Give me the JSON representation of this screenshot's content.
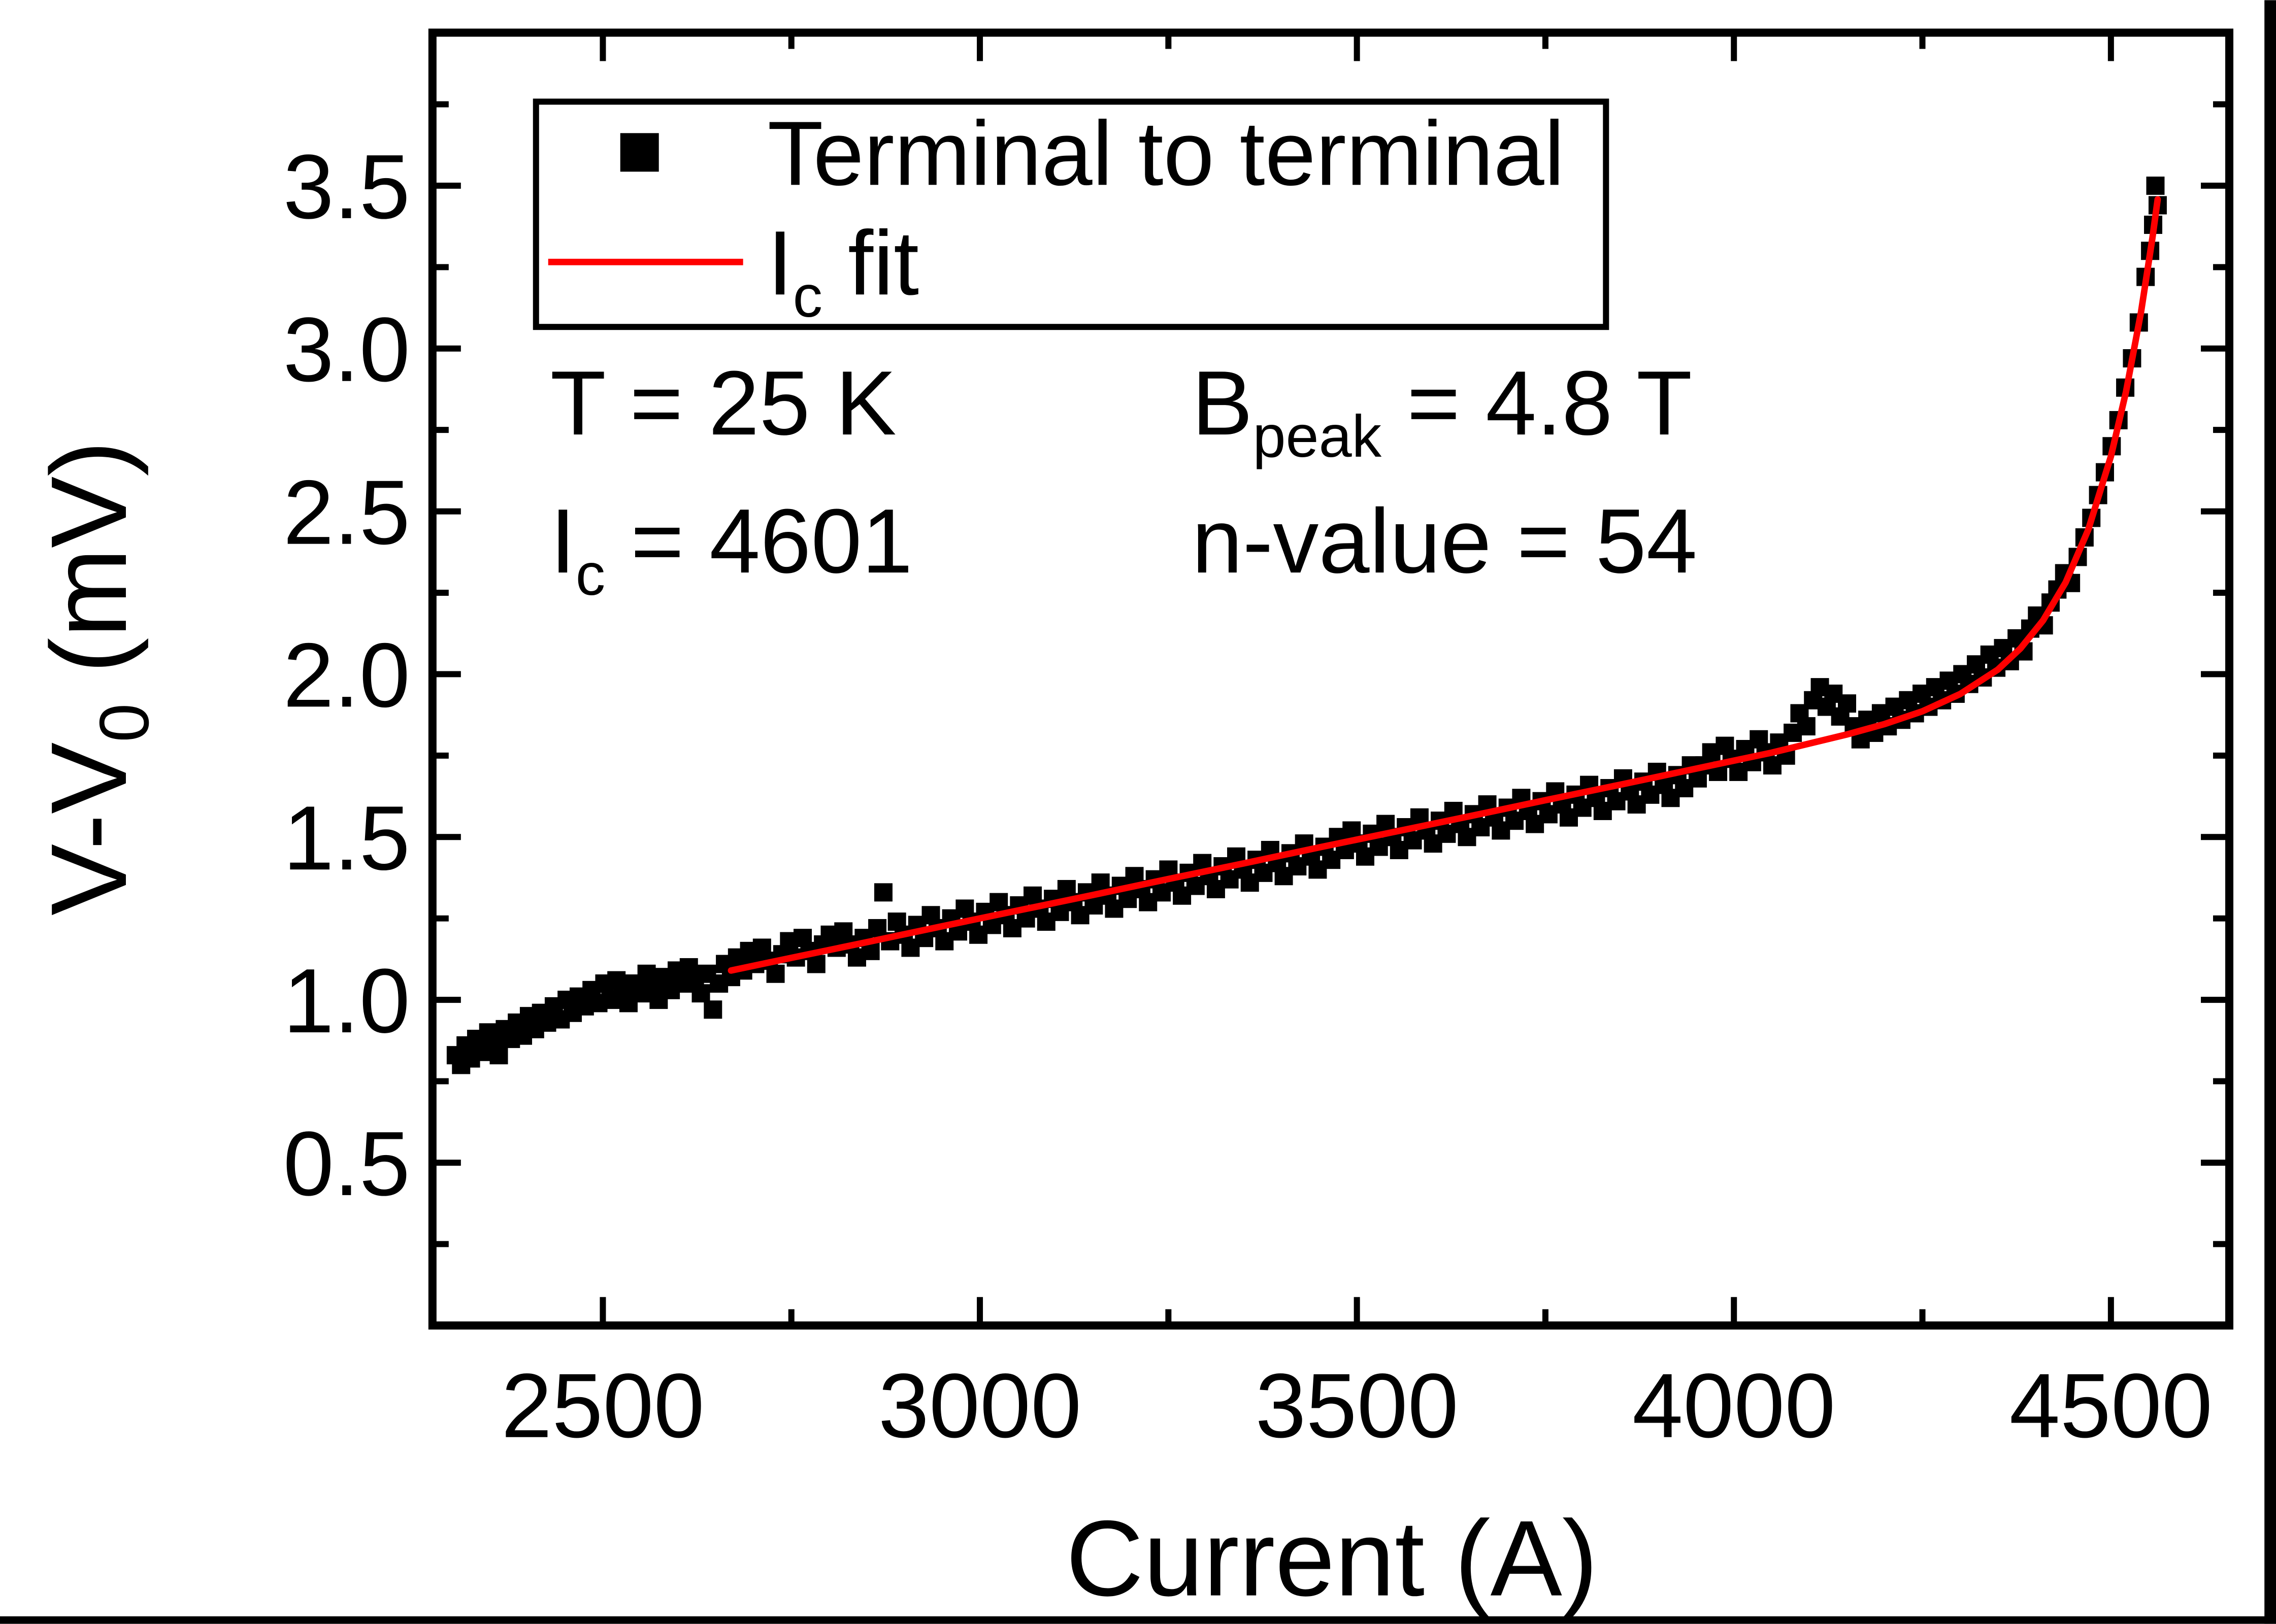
{
  "colors": {
    "background": "#ffffff",
    "data_marker": "#000000",
    "fit_line": "#ff0000",
    "axis": "#000000",
    "page_edge_bars": "#000000"
  },
  "legend": {
    "entries": [
      {
        "label": "Terminal to terminal",
        "marker": "filled-square",
        "color": "#000000"
      },
      {
        "label_parts": {
          "pre": "I",
          "sub": "c",
          "post": " fit"
        },
        "marker": "line",
        "color": "#ff0000"
      }
    ]
  },
  "annotations": {
    "temperature": {
      "pre": "T = 25 K"
    },
    "peak_field": {
      "pre": "B",
      "sub": "peak",
      "post": " = 4.8 T"
    },
    "critical_current": {
      "pre": "I",
      "sub": "c",
      "post": " = 4601"
    },
    "n_value": {
      "pre": "n-value = 54"
    }
  },
  "chart_data": {
    "type": "scatter",
    "title": "",
    "xlabel": "Current (A)",
    "ylabel_parts": {
      "pre": "V-V",
      "sub": "0",
      "post": " (mV)"
    },
    "xlim": [
      2274,
      4657
    ],
    "ylim": [
      0,
      3.97
    ],
    "grid": false,
    "legend_position": "top-left-inside",
    "x_major_ticks": [
      2500,
      3000,
      3500,
      4000,
      4500
    ],
    "x_minor_ticks": [
      2750,
      3250,
      3750,
      4250
    ],
    "y_major_ticks": [
      0.5,
      1.0,
      1.5,
      2.0,
      2.5,
      3.0,
      3.5
    ],
    "y_minor_ticks": [
      0.25,
      0.75,
      1.25,
      1.75,
      2.25,
      2.75,
      3.25,
      3.75
    ],
    "series": [
      {
        "name": "Terminal to terminal",
        "type": "scatter",
        "marker": "square",
        "color": "#000000",
        "points": [
          [
            2305,
            0.83
          ],
          [
            2312,
            0.8
          ],
          [
            2318,
            0.86
          ],
          [
            2325,
            0.82
          ],
          [
            2332,
            0.88
          ],
          [
            2340,
            0.84
          ],
          [
            2348,
            0.9
          ],
          [
            2355,
            0.86
          ],
          [
            2362,
            0.83
          ],
          [
            2370,
            0.91
          ],
          [
            2378,
            0.88
          ],
          [
            2386,
            0.93
          ],
          [
            2394,
            0.89
          ],
          [
            2402,
            0.95
          ],
          [
            2410,
            0.91
          ],
          [
            2418,
            0.96
          ],
          [
            2426,
            0.93
          ],
          [
            2435,
            0.98
          ],
          [
            2444,
            0.94
          ],
          [
            2452,
            1.0
          ],
          [
            2460,
            0.96
          ],
          [
            2468,
            1.01
          ],
          [
            2476,
            0.98
          ],
          [
            2485,
            1.03
          ],
          [
            2494,
            0.99
          ],
          [
            2502,
            1.05
          ],
          [
            2510,
            1.0
          ],
          [
            2518,
            1.06
          ],
          [
            2526,
            1.02
          ],
          [
            2534,
            0.99
          ],
          [
            2542,
            1.05
          ],
          [
            2550,
            1.02
          ],
          [
            2558,
            1.08
          ],
          [
            2566,
            1.04
          ],
          [
            2574,
            1.0
          ],
          [
            2582,
            1.07
          ],
          [
            2590,
            1.03
          ],
          [
            2598,
            1.09
          ],
          [
            2606,
            1.05
          ],
          [
            2614,
            1.1
          ],
          [
            2622,
            1.06
          ],
          [
            2630,
            1.02
          ],
          [
            2638,
            1.08
          ],
          [
            2646,
            0.97
          ],
          [
            2654,
            1.05
          ],
          [
            2662,
            1.11
          ],
          [
            2670,
            1.07
          ],
          [
            2678,
            1.13
          ],
          [
            2686,
            1.09
          ],
          [
            2694,
            1.15
          ],
          [
            2702,
            1.11
          ],
          [
            2711,
            1.16
          ],
          [
            2720,
            1.12
          ],
          [
            2729,
            1.08
          ],
          [
            2738,
            1.14
          ],
          [
            2747,
            1.18
          ],
          [
            2756,
            1.13
          ],
          [
            2765,
            1.19
          ],
          [
            2774,
            1.15
          ],
          [
            2783,
            1.11
          ],
          [
            2792,
            1.17
          ],
          [
            2801,
            1.2
          ],
          [
            2810,
            1.16
          ],
          [
            2819,
            1.21
          ],
          [
            2828,
            1.17
          ],
          [
            2837,
            1.13
          ],
          [
            2846,
            1.19
          ],
          [
            2855,
            1.15
          ],
          [
            2864,
            1.22
          ],
          [
            2872,
            1.33
          ],
          [
            2881,
            1.18
          ],
          [
            2890,
            1.24
          ],
          [
            2899,
            1.2
          ],
          [
            2908,
            1.16
          ],
          [
            2917,
            1.23
          ],
          [
            2926,
            1.19
          ],
          [
            2935,
            1.26
          ],
          [
            2944,
            1.22
          ],
          [
            2953,
            1.18
          ],
          [
            2962,
            1.25
          ],
          [
            2971,
            1.21
          ],
          [
            2980,
            1.28
          ],
          [
            2989,
            1.24
          ],
          [
            2998,
            1.2
          ],
          [
            3007,
            1.27
          ],
          [
            3016,
            1.23
          ],
          [
            3025,
            1.3
          ],
          [
            3034,
            1.26
          ],
          [
            3043,
            1.22
          ],
          [
            3052,
            1.29
          ],
          [
            3061,
            1.25
          ],
          [
            3070,
            1.32
          ],
          [
            3079,
            1.28
          ],
          [
            3088,
            1.24
          ],
          [
            3097,
            1.31
          ],
          [
            3106,
            1.27
          ],
          [
            3115,
            1.34
          ],
          [
            3124,
            1.3
          ],
          [
            3133,
            1.26
          ],
          [
            3142,
            1.33
          ],
          [
            3151,
            1.29
          ],
          [
            3160,
            1.36
          ],
          [
            3169,
            1.32
          ],
          [
            3178,
            1.28
          ],
          [
            3187,
            1.35
          ],
          [
            3196,
            1.31
          ],
          [
            3205,
            1.38
          ],
          [
            3214,
            1.34
          ],
          [
            3223,
            1.3
          ],
          [
            3232,
            1.37
          ],
          [
            3241,
            1.33
          ],
          [
            3250,
            1.4
          ],
          [
            3259,
            1.36
          ],
          [
            3268,
            1.32
          ],
          [
            3277,
            1.39
          ],
          [
            3286,
            1.35
          ],
          [
            3295,
            1.42
          ],
          [
            3304,
            1.38
          ],
          [
            3313,
            1.34
          ],
          [
            3322,
            1.41
          ],
          [
            3331,
            1.37
          ],
          [
            3340,
            1.44
          ],
          [
            3349,
            1.4
          ],
          [
            3358,
            1.36
          ],
          [
            3367,
            1.43
          ],
          [
            3376,
            1.39
          ],
          [
            3385,
            1.46
          ],
          [
            3394,
            1.42
          ],
          [
            3403,
            1.38
          ],
          [
            3412,
            1.45
          ],
          [
            3421,
            1.41
          ],
          [
            3430,
            1.48
          ],
          [
            3439,
            1.44
          ],
          [
            3448,
            1.4
          ],
          [
            3457,
            1.47
          ],
          [
            3466,
            1.43
          ],
          [
            3475,
            1.5
          ],
          [
            3484,
            1.46
          ],
          [
            3493,
            1.52
          ],
          [
            3502,
            1.48
          ],
          [
            3511,
            1.44
          ],
          [
            3520,
            1.51
          ],
          [
            3529,
            1.47
          ],
          [
            3538,
            1.54
          ],
          [
            3547,
            1.5
          ],
          [
            3556,
            1.46
          ],
          [
            3565,
            1.53
          ],
          [
            3574,
            1.49
          ],
          [
            3583,
            1.56
          ],
          [
            3592,
            1.52
          ],
          [
            3601,
            1.48
          ],
          [
            3610,
            1.55
          ],
          [
            3619,
            1.51
          ],
          [
            3628,
            1.58
          ],
          [
            3637,
            1.54
          ],
          [
            3646,
            1.5
          ],
          [
            3655,
            1.57
          ],
          [
            3664,
            1.53
          ],
          [
            3673,
            1.6
          ],
          [
            3682,
            1.56
          ],
          [
            3691,
            1.52
          ],
          [
            3700,
            1.59
          ],
          [
            3709,
            1.55
          ],
          [
            3718,
            1.62
          ],
          [
            3727,
            1.58
          ],
          [
            3736,
            1.54
          ],
          [
            3745,
            1.61
          ],
          [
            3754,
            1.57
          ],
          [
            3763,
            1.64
          ],
          [
            3772,
            1.6
          ],
          [
            3781,
            1.56
          ],
          [
            3790,
            1.63
          ],
          [
            3799,
            1.59
          ],
          [
            3808,
            1.66
          ],
          [
            3817,
            1.62
          ],
          [
            3826,
            1.58
          ],
          [
            3835,
            1.65
          ],
          [
            3844,
            1.61
          ],
          [
            3853,
            1.68
          ],
          [
            3862,
            1.64
          ],
          [
            3871,
            1.6
          ],
          [
            3880,
            1.67
          ],
          [
            3889,
            1.63
          ],
          [
            3898,
            1.7
          ],
          [
            3907,
            1.66
          ],
          [
            3916,
            1.62
          ],
          [
            3925,
            1.69
          ],
          [
            3934,
            1.65
          ],
          [
            3943,
            1.72
          ],
          [
            3952,
            1.68
          ],
          [
            3961,
            1.72
          ],
          [
            3970,
            1.76
          ],
          [
            3979,
            1.7
          ],
          [
            3988,
            1.78
          ],
          [
            3997,
            1.74
          ],
          [
            4006,
            1.7
          ],
          [
            4015,
            1.77
          ],
          [
            4024,
            1.73
          ],
          [
            4033,
            1.8
          ],
          [
            4042,
            1.76
          ],
          [
            4051,
            1.72
          ],
          [
            4060,
            1.79
          ],
          [
            4069,
            1.75
          ],
          [
            4078,
            1.82
          ],
          [
            4087,
            1.88
          ],
          [
            4096,
            1.84
          ],
          [
            4105,
            1.92
          ],
          [
            4114,
            1.96
          ],
          [
            4123,
            1.9
          ],
          [
            4132,
            1.94
          ],
          [
            4141,
            1.87
          ],
          [
            4150,
            1.91
          ],
          [
            4159,
            1.84
          ],
          [
            4168,
            1.8
          ],
          [
            4177,
            1.86
          ],
          [
            4186,
            1.82
          ],
          [
            4195,
            1.88
          ],
          [
            4204,
            1.84
          ],
          [
            4213,
            1.9
          ],
          [
            4222,
            1.86
          ],
          [
            4231,
            1.92
          ],
          [
            4240,
            1.88
          ],
          [
            4249,
            1.94
          ],
          [
            4258,
            1.9
          ],
          [
            4267,
            1.96
          ],
          [
            4276,
            1.92
          ],
          [
            4285,
            1.98
          ],
          [
            4294,
            1.94
          ],
          [
            4303,
            2.0
          ],
          [
            4312,
            1.97
          ],
          [
            4321,
            2.03
          ],
          [
            4330,
            1.99
          ],
          [
            4339,
            2.06
          ],
          [
            4348,
            2.02
          ],
          [
            4357,
            2.08
          ],
          [
            4366,
            2.04
          ],
          [
            4375,
            2.11
          ],
          [
            4384,
            2.07
          ],
          [
            4393,
            2.14
          ],
          [
            4402,
            2.18
          ],
          [
            4411,
            2.15
          ],
          [
            4420,
            2.22
          ],
          [
            4429,
            2.26
          ],
          [
            4438,
            2.31
          ],
          [
            4447,
            2.28
          ],
          [
            4456,
            2.36
          ],
          [
            4465,
            2.42
          ],
          [
            4474,
            2.48
          ],
          [
            4483,
            2.55
          ],
          [
            4492,
            2.62
          ],
          [
            4501,
            2.7
          ],
          [
            4510,
            2.78
          ],
          [
            4519,
            2.88
          ],
          [
            4528,
            2.97
          ],
          [
            4537,
            3.08
          ],
          [
            4546,
            3.22
          ],
          [
            4552,
            3.3
          ],
          [
            4556,
            3.38
          ],
          [
            4559,
            3.5
          ],
          [
            4562,
            3.44
          ]
        ]
      },
      {
        "name_parts": {
          "pre": "I",
          "sub": "c",
          "post": " fit"
        },
        "type": "line",
        "color": "#ff0000",
        "points": [
          [
            2670,
            1.09
          ],
          [
            2750,
            1.129
          ],
          [
            2850,
            1.177
          ],
          [
            2950,
            1.226
          ],
          [
            3050,
            1.274
          ],
          [
            3150,
            1.322
          ],
          [
            3250,
            1.371
          ],
          [
            3350,
            1.419
          ],
          [
            3450,
            1.468
          ],
          [
            3550,
            1.516
          ],
          [
            3650,
            1.564
          ],
          [
            3750,
            1.613
          ],
          [
            3850,
            1.661
          ],
          [
            3950,
            1.71
          ],
          [
            4050,
            1.759
          ],
          [
            4100,
            1.787
          ],
          [
            4150,
            1.815
          ],
          [
            4200,
            1.847
          ],
          [
            4250,
            1.886
          ],
          [
            4300,
            1.939
          ],
          [
            4350,
            2.014
          ],
          [
            4380,
            2.079
          ],
          [
            4410,
            2.165
          ],
          [
            4440,
            2.282
          ],
          [
            4470,
            2.444
          ],
          [
            4500,
            2.669
          ],
          [
            4520,
            2.867
          ],
          [
            4540,
            3.113
          ],
          [
            4555,
            3.339
          ],
          [
            4562,
            3.458
          ]
        ]
      }
    ]
  }
}
